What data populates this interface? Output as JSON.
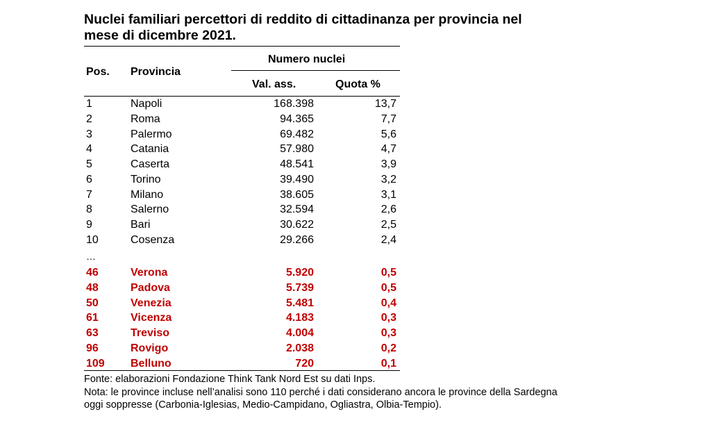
{
  "title_line1": "Nuclei familiari percettori di reddito di cittadinanza per provincia nel",
  "title_line2": "mese di dicembre 2021.",
  "headers": {
    "pos": "Pos.",
    "provincia": "Provincia",
    "group": "Numero nuclei",
    "val": "Val. ass.",
    "quota": "Quota %"
  },
  "rows": [
    {
      "pos": "1",
      "provincia": "Napoli",
      "val": "168.398",
      "quota": "13,7"
    },
    {
      "pos": "2",
      "provincia": "Roma",
      "val": "94.365",
      "quota": "7,7"
    },
    {
      "pos": "3",
      "provincia": "Palermo",
      "val": "69.482",
      "quota": "5,6"
    },
    {
      "pos": "4",
      "provincia": "Catania",
      "val": "57.980",
      "quota": "4,7"
    },
    {
      "pos": "5",
      "provincia": "Caserta",
      "val": "48.541",
      "quota": "3,9"
    },
    {
      "pos": "6",
      "provincia": "Torino",
      "val": "39.490",
      "quota": "3,2"
    },
    {
      "pos": "7",
      "provincia": "Milano",
      "val": "38.605",
      "quota": "3,1"
    },
    {
      "pos": "8",
      "provincia": "Salerno",
      "val": "32.594",
      "quota": "2,6"
    },
    {
      "pos": "9",
      "provincia": "Bari",
      "val": "30.622",
      "quota": "2,5"
    },
    {
      "pos": "10",
      "provincia": "Cosenza",
      "val": "29.266",
      "quota": "2,4"
    }
  ],
  "ellipsis": "…",
  "highlight_rows": [
    {
      "pos": "46",
      "provincia": "Verona",
      "val": "5.920",
      "quota": "0,5"
    },
    {
      "pos": "48",
      "provincia": "Padova",
      "val": "5.739",
      "quota": "0,5"
    },
    {
      "pos": "50",
      "provincia": "Venezia",
      "val": "5.481",
      "quota": "0,4"
    },
    {
      "pos": "61",
      "provincia": "Vicenza",
      "val": "4.183",
      "quota": "0,3"
    },
    {
      "pos": "63",
      "provincia": "Treviso",
      "val": "4.004",
      "quota": "0,3"
    },
    {
      "pos": "96",
      "provincia": "Rovigo",
      "val": "2.038",
      "quota": "0,2"
    },
    {
      "pos": "109",
      "provincia": "Belluno",
      "val": "720",
      "quota": "0,1"
    }
  ],
  "highlight_color": "#c00000",
  "source": "Fonte: elaborazioni Fondazione Think Tank Nord Est su dati Inps.",
  "note_line1": "Nota: le province incluse nell’analisi sono 110 perché i dati considerano ancora le province della Sardegna",
  "note_line2": "oggi soppresse (Carbonia-Iglesias, Medio-Campidano, Ogliastra, Olbia-Tempio)."
}
